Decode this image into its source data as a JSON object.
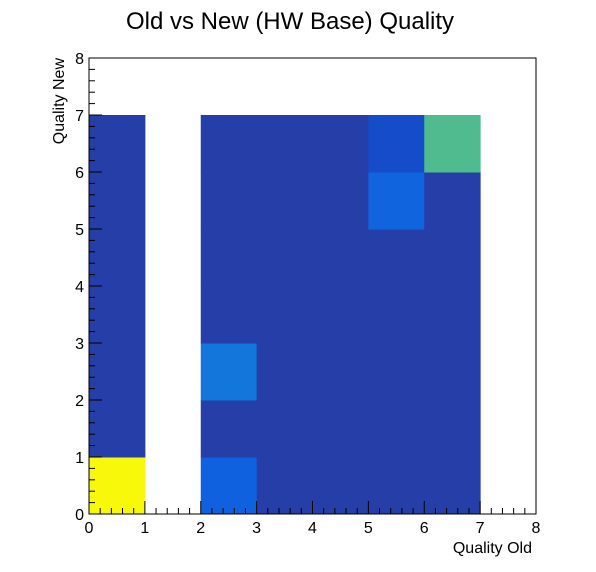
{
  "chart_data": {
    "type": "heatmap",
    "title": "Old vs New (HW Base) Quality",
    "xlabel": "Quality Old",
    "ylabel": "Quality New",
    "xlim": [
      0,
      8
    ],
    "ylim": [
      0,
      8
    ],
    "x_ticks": [
      "0",
      "1",
      "2",
      "3",
      "4",
      "5",
      "6",
      "7",
      "8"
    ],
    "y_ticks": [
      "0",
      "1",
      "2",
      "3",
      "4",
      "5",
      "6",
      "7",
      "8"
    ],
    "grid": false,
    "colors": {
      "background": "#ffffff",
      "axis": "#000000"
    },
    "cells": [
      {
        "x": 0,
        "y": 0,
        "color": "#f8f80a"
      },
      {
        "x": 0,
        "y": 1,
        "color": "#263ea8"
      },
      {
        "x": 0,
        "y": 2,
        "color": "#263ea8"
      },
      {
        "x": 0,
        "y": 3,
        "color": "#263ea8"
      },
      {
        "x": 0,
        "y": 4,
        "color": "#263ea8"
      },
      {
        "x": 0,
        "y": 5,
        "color": "#263ea8"
      },
      {
        "x": 0,
        "y": 6,
        "color": "#263ea8"
      },
      {
        "x": 2,
        "y": 0,
        "color": "#1061e0"
      },
      {
        "x": 2,
        "y": 1,
        "color": "#263ea8"
      },
      {
        "x": 2,
        "y": 2,
        "color": "#1276db"
      },
      {
        "x": 2,
        "y": 3,
        "color": "#263ea8"
      },
      {
        "x": 2,
        "y": 4,
        "color": "#263ea8"
      },
      {
        "x": 2,
        "y": 5,
        "color": "#263ea8"
      },
      {
        "x": 2,
        "y": 6,
        "color": "#263ea8"
      },
      {
        "x": 3,
        "y": 0,
        "color": "#263ea8"
      },
      {
        "x": 3,
        "y": 1,
        "color": "#263ea8"
      },
      {
        "x": 3,
        "y": 2,
        "color": "#263ea8"
      },
      {
        "x": 3,
        "y": 3,
        "color": "#263ea8"
      },
      {
        "x": 3,
        "y": 4,
        "color": "#263ea8"
      },
      {
        "x": 3,
        "y": 5,
        "color": "#263ea8"
      },
      {
        "x": 3,
        "y": 6,
        "color": "#263ea8"
      },
      {
        "x": 4,
        "y": 0,
        "color": "#263ea8"
      },
      {
        "x": 4,
        "y": 1,
        "color": "#263ea8"
      },
      {
        "x": 4,
        "y": 2,
        "color": "#263ea8"
      },
      {
        "x": 4,
        "y": 3,
        "color": "#263ea8"
      },
      {
        "x": 4,
        "y": 4,
        "color": "#263ea8"
      },
      {
        "x": 4,
        "y": 5,
        "color": "#263ea8"
      },
      {
        "x": 4,
        "y": 6,
        "color": "#263ea8"
      },
      {
        "x": 5,
        "y": 0,
        "color": "#263ea8"
      },
      {
        "x": 5,
        "y": 1,
        "color": "#263ea8"
      },
      {
        "x": 5,
        "y": 2,
        "color": "#263ea8"
      },
      {
        "x": 5,
        "y": 3,
        "color": "#263ea8"
      },
      {
        "x": 5,
        "y": 4,
        "color": "#263ea8"
      },
      {
        "x": 5,
        "y": 5,
        "color": "#1065df"
      },
      {
        "x": 5,
        "y": 6,
        "color": "#154cca"
      },
      {
        "x": 6,
        "y": 0,
        "color": "#263ea8"
      },
      {
        "x": 6,
        "y": 1,
        "color": "#263ea8"
      },
      {
        "x": 6,
        "y": 2,
        "color": "#263ea8"
      },
      {
        "x": 6,
        "y": 3,
        "color": "#263ea8"
      },
      {
        "x": 6,
        "y": 4,
        "color": "#263ea8"
      },
      {
        "x": 6,
        "y": 5,
        "color": "#263ea8"
      },
      {
        "x": 6,
        "y": 6,
        "color": "#4fbb8f"
      }
    ]
  }
}
